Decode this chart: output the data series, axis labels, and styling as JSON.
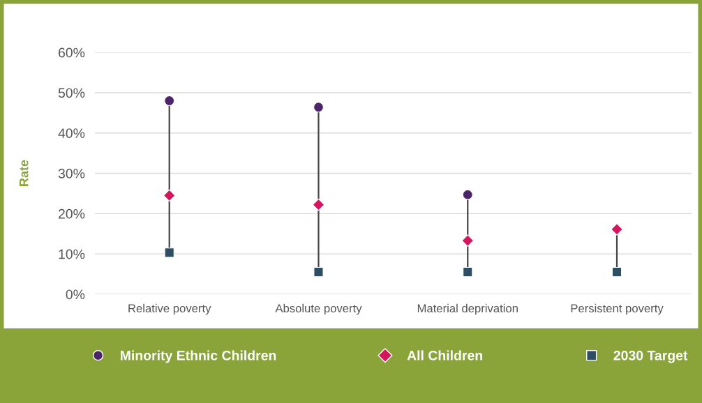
{
  "chart_data": {
    "type": "scatter",
    "ylabel": "Rate",
    "categories": [
      "Relative poverty",
      "Absolute poverty",
      "Material deprivation",
      "Persistent poverty"
    ],
    "series": [
      {
        "name": "Minority Ethnic Children",
        "color": "#4b2469",
        "marker": "circle",
        "values": [
          48,
          46.4,
          24.7,
          null
        ]
      },
      {
        "name": "All Children",
        "color": "#d6155f",
        "marker": "diamond",
        "values": [
          24.5,
          22.2,
          13.3,
          16.1
        ]
      },
      {
        "name": "2030 Target",
        "color": "#2d4e63",
        "marker": "square",
        "values": [
          10.3,
          5.5,
          5.5,
          5.5
        ]
      }
    ],
    "ylim": [
      0,
      60
    ],
    "yticks": [
      {
        "value": 0,
        "label": "0%"
      },
      {
        "value": 10,
        "label": "10%"
      },
      {
        "value": 20,
        "label": "20%"
      },
      {
        "value": 30,
        "label": "30%"
      },
      {
        "value": 40,
        "label": "40%"
      },
      {
        "value": 50,
        "label": "50%"
      },
      {
        "value": 60,
        "label": "60%"
      }
    ],
    "grid": "y",
    "legend": "bottom"
  }
}
